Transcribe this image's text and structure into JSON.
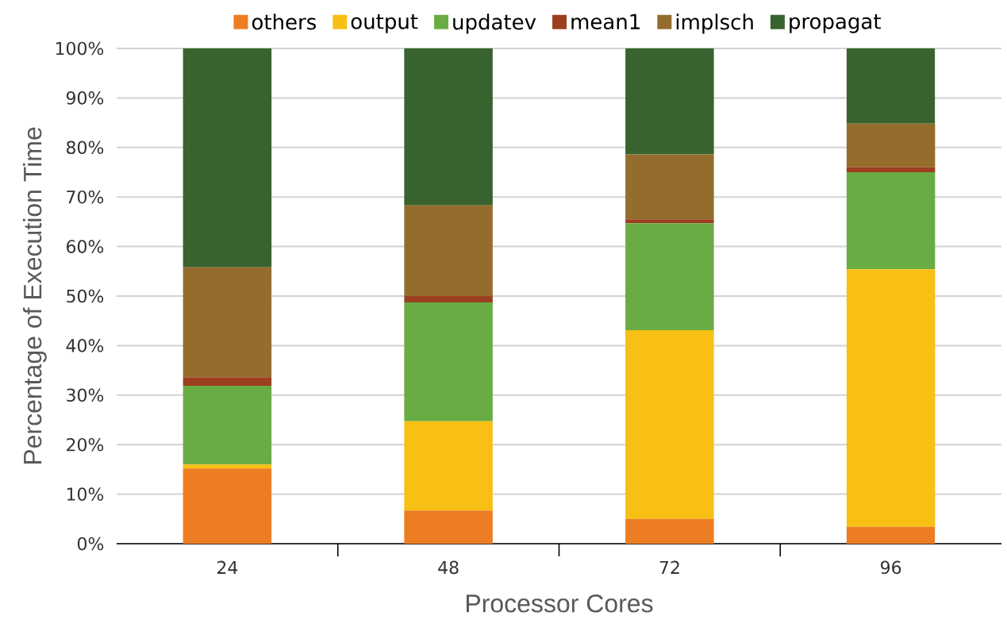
{
  "chart_data": {
    "type": "bar",
    "stacked": true,
    "xlabel": "Processor Cores",
    "ylabel": "Percentage of Execution Time",
    "categories": [
      "24",
      "48",
      "72",
      "96"
    ],
    "series": [
      {
        "name": "others",
        "color": "#ed7d22",
        "values": [
          15.2,
          6.7,
          5.0,
          3.4
        ]
      },
      {
        "name": "output",
        "color": "#f8bf15",
        "values": [
          0.8,
          18.0,
          38.1,
          52.0
        ]
      },
      {
        "name": "updatev",
        "color": "#6aac44",
        "values": [
          15.9,
          24.0,
          21.6,
          19.6
        ]
      },
      {
        "name": "mean1",
        "color": "#9c3f1e",
        "values": [
          1.7,
          1.3,
          0.8,
          1.0
        ]
      },
      {
        "name": "implsch",
        "color": "#946d2d",
        "values": [
          22.2,
          18.3,
          13.1,
          8.8
        ]
      },
      {
        "name": "propagat",
        "color": "#38632e",
        "values": [
          44.2,
          31.7,
          21.5,
          15.2
        ]
      }
    ],
    "ylim": [
      0,
      100
    ],
    "yticks": [
      {
        "value": 0,
        "label": "0%"
      },
      {
        "value": 10,
        "label": "10%"
      },
      {
        "value": 20,
        "label": "20%"
      },
      {
        "value": 30,
        "label": "30%"
      },
      {
        "value": 40,
        "label": "40%"
      },
      {
        "value": 50,
        "label": "50%"
      },
      {
        "value": 60,
        "label": "60%"
      },
      {
        "value": 70,
        "label": "70%"
      },
      {
        "value": 80,
        "label": "80%"
      },
      {
        "value": 90,
        "label": "90%"
      },
      {
        "value": 100,
        "label": "100%"
      }
    ],
    "grid": "y",
    "legend": "top"
  }
}
